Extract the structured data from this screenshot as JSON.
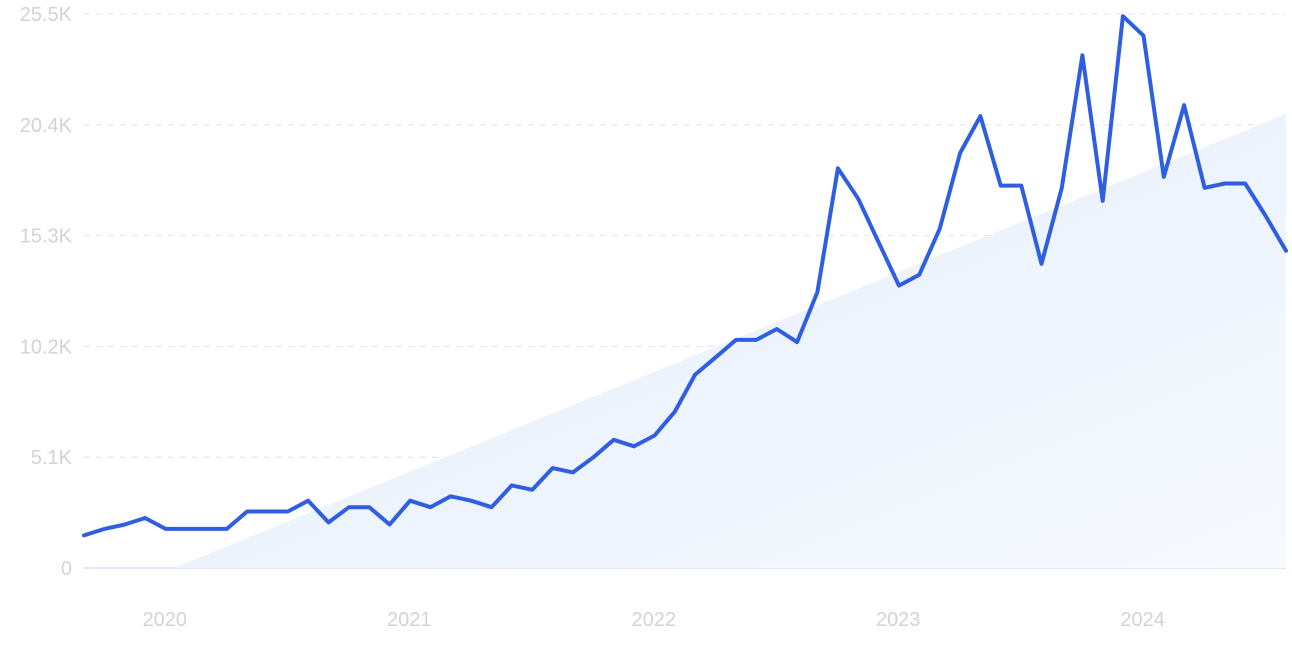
{
  "chart_data": {
    "type": "line",
    "title": "",
    "xlabel": "",
    "ylabel": "",
    "ylim": [
      0,
      25500
    ],
    "y_ticks": [
      {
        "value": 0,
        "label": "0"
      },
      {
        "value": 5100,
        "label": "5.1K"
      },
      {
        "value": 10200,
        "label": "10.2K"
      },
      {
        "value": 15300,
        "label": "15.3K"
      },
      {
        "value": 20400,
        "label": "20.4K"
      },
      {
        "value": 25500,
        "label": "25.5K"
      }
    ],
    "x_ticks": [
      {
        "value": 2020.0,
        "label": "2020"
      },
      {
        "value": 2021.0,
        "label": "2021"
      },
      {
        "value": 2022.0,
        "label": "2022"
      },
      {
        "value": 2023.0,
        "label": "2023"
      },
      {
        "value": 2024.0,
        "label": "2024"
      }
    ],
    "xlim": [
      2019.833,
      2024.75
    ],
    "grid": true,
    "colors": {
      "line": "#2f5ee3",
      "trend_fill": "#e6effc",
      "grid": "#dfe3ea",
      "tick_text": "#d0d3da"
    },
    "series": [
      {
        "x": [
          2019.833,
          2019.917,
          2020.0,
          2020.083,
          2020.167,
          2020.25,
          2020.333,
          2020.417,
          2020.5,
          2020.583,
          2020.667,
          2020.75,
          2020.833,
          2020.917,
          2021.0,
          2021.083,
          2021.167,
          2021.25,
          2021.333,
          2021.417,
          2021.5,
          2021.583,
          2021.667,
          2021.75,
          2021.833,
          2021.917,
          2022.0,
          2022.083,
          2022.167,
          2022.25,
          2022.333,
          2022.417,
          2022.5,
          2022.583,
          2022.667,
          2022.75,
          2022.833,
          2022.917,
          2023.0,
          2023.083,
          2023.167,
          2023.25,
          2023.333,
          2023.417,
          2023.5,
          2023.583,
          2023.667,
          2023.75,
          2023.833,
          2023.917,
          2024.0,
          2024.083,
          2024.167,
          2024.25,
          2024.333,
          2024.417,
          2024.5,
          2024.583,
          2024.667,
          2024.75
        ],
        "values": [
          1500,
          1800,
          2000,
          2300,
          1800,
          1800,
          1800,
          1800,
          2600,
          2600,
          2600,
          3100,
          2100,
          2800,
          2800,
          2000,
          3100,
          2800,
          3300,
          3100,
          2800,
          3800,
          3600,
          4600,
          4400,
          5100,
          5900,
          5600,
          6100,
          7200,
          8900,
          9700,
          10500,
          10500,
          11000,
          10400,
          12700,
          18400,
          17000,
          15000,
          13000,
          13500,
          15600,
          19100,
          20800,
          17600,
          17600,
          14000,
          17500,
          23600,
          16900,
          25400,
          24500,
          18000,
          21300,
          17500,
          17700,
          17700,
          16200,
          14600
        ]
      }
    ],
    "trend_area": {
      "x": [
        2020.2,
        2024.75
      ],
      "values": [
        0,
        20900
      ]
    }
  }
}
